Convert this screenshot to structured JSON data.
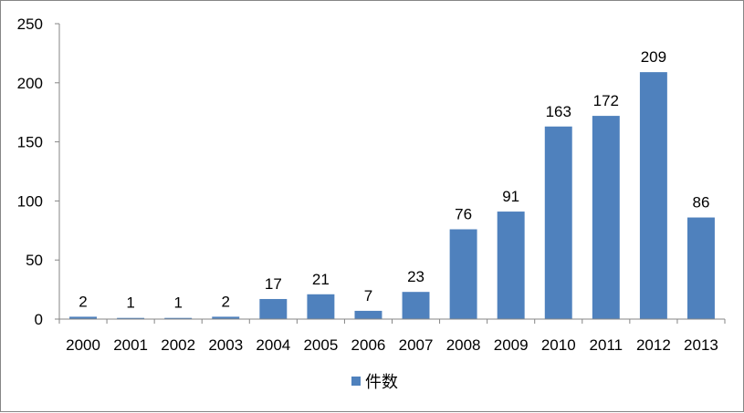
{
  "chart_data": {
    "type": "bar",
    "categories": [
      "2000",
      "2001",
      "2002",
      "2003",
      "2004",
      "2005",
      "2006",
      "2007",
      "2008",
      "2009",
      "2010",
      "2011",
      "2012",
      "2013"
    ],
    "series": [
      {
        "name": "件数",
        "values": [
          2,
          1,
          1,
          2,
          17,
          21,
          7,
          23,
          76,
          91,
          163,
          172,
          209,
          86
        ],
        "color": "#4F81BD"
      }
    ],
    "ylim": [
      0,
      250
    ],
    "yticks": [
      0,
      50,
      100,
      150,
      200,
      250
    ],
    "title": "",
    "xlabel": "",
    "ylabel": "",
    "grid": false,
    "data_labels": true,
    "legend": "bottom"
  }
}
